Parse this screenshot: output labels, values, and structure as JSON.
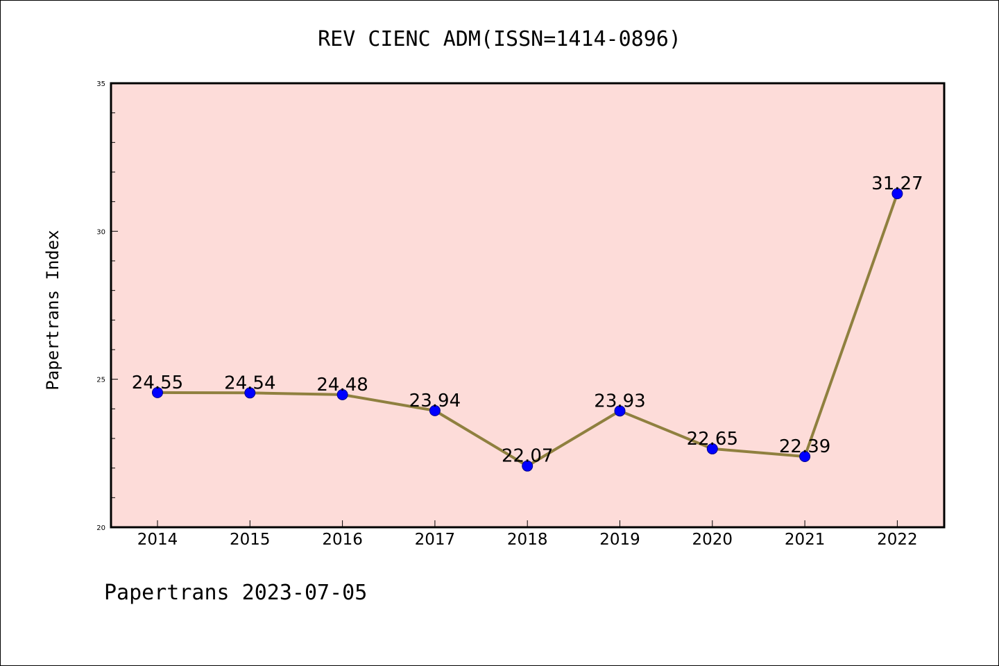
{
  "chart_data": {
    "type": "line",
    "title": "REV CIENC ADM(ISSN=1414-0896)",
    "xlabel": "",
    "ylabel": "Papertrans Index",
    "categories": [
      "2014",
      "2015",
      "2016",
      "2017",
      "2018",
      "2019",
      "2020",
      "2021",
      "2022"
    ],
    "values": [
      24.55,
      24.54,
      24.48,
      23.94,
      22.07,
      23.93,
      22.65,
      22.39,
      31.27
    ],
    "data_labels": [
      "24.55",
      "24.54",
      "24.48",
      "23.94",
      "22.07",
      "23.93",
      "22.65",
      "22.39",
      "31.27"
    ],
    "ylim": [
      20,
      35
    ],
    "y_ticks": [
      "20",
      "25",
      "30",
      "35"
    ],
    "grid": false,
    "legend": "none",
    "colors": {
      "plot_background": "#fddcd9",
      "line": "#8f803f",
      "marker": "#0000ff",
      "marker_edge": "#00008b"
    }
  },
  "footer": "Papertrans 2023-07-05"
}
